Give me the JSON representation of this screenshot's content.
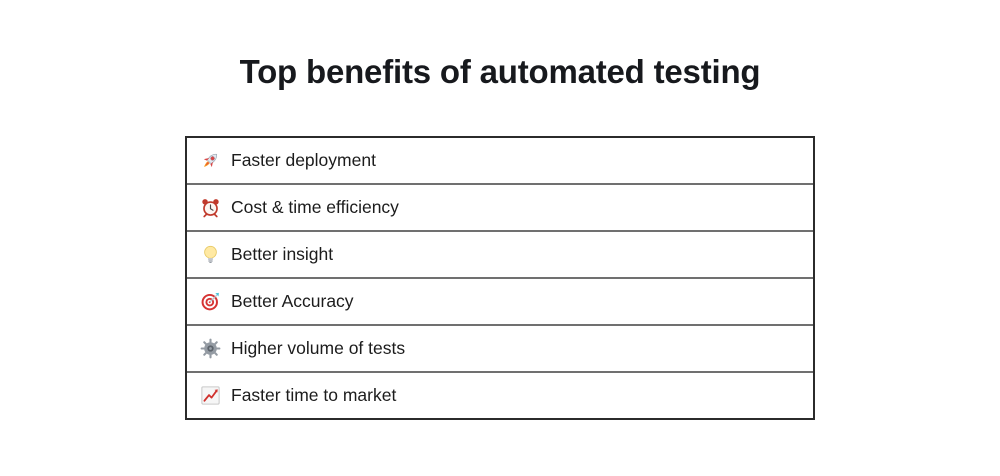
{
  "page": {
    "title": "Top benefits of automated testing"
  },
  "benefits": {
    "items": [
      {
        "icon": "rocket-icon",
        "emoji": "🚀",
        "label": "Faster deployment"
      },
      {
        "icon": "alarm-clock-icon",
        "emoji": "⏰",
        "label": "Cost & time efficiency"
      },
      {
        "icon": "light-bulb-icon",
        "emoji": "💡",
        "label": "Better insight"
      },
      {
        "icon": "target-icon",
        "emoji": "🎯",
        "label": "Better Accuracy"
      },
      {
        "icon": "gear-icon",
        "emoji": "⚙️",
        "label": "Higher volume of tests"
      },
      {
        "icon": "chart-increasing-icon",
        "emoji": "📈",
        "label": "Faster time to market"
      }
    ]
  },
  "colors": {
    "background": "#ffffff",
    "title_text": "#17191d",
    "row_text": "#1c1c1c",
    "outer_border": "#2b2b2b",
    "row_divider": "#707070"
  }
}
